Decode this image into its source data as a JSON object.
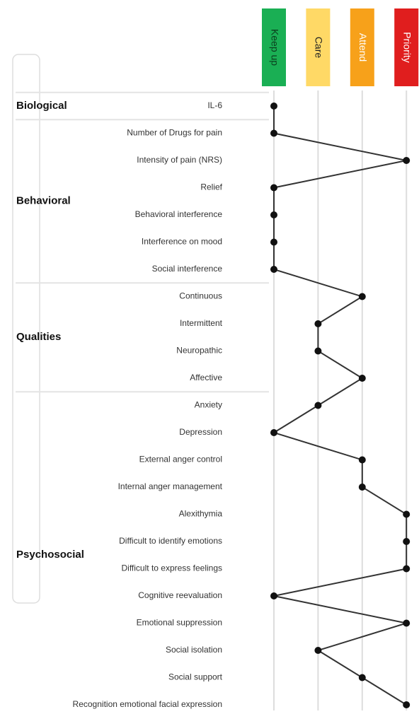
{
  "chart_data": {
    "type": "profile",
    "levels": [
      {
        "name": "Keep up",
        "color": "#1aaf54",
        "text_color": "#0b3d1d"
      },
      {
        "name": "Care",
        "color": "#ffd966",
        "text_color": "#222222"
      },
      {
        "name": "Attend",
        "color": "#f7a11a",
        "text_color": "#ffffff"
      },
      {
        "name": "Priority",
        "color": "#e01e1e",
        "text_color": "#ffffff"
      }
    ],
    "groups": [
      {
        "name": "Biological",
        "items": [
          {
            "label": "IL-6",
            "level": "Keep up"
          }
        ]
      },
      {
        "name": "Behavioral",
        "items": [
          {
            "label": "Number of Drugs for pain",
            "level": "Keep up"
          },
          {
            "label": "Intensity of pain (NRS)",
            "level": "Priority"
          },
          {
            "label": "Relief",
            "level": "Keep up"
          },
          {
            "label": "Behavioral interference",
            "level": "Keep up"
          },
          {
            "label": "Interference on mood",
            "level": "Keep up"
          },
          {
            "label": "Social interference",
            "level": "Keep up"
          }
        ]
      },
      {
        "name": "Qualities",
        "items": [
          {
            "label": "Continuous",
            "level": "Attend"
          },
          {
            "label": "Intermittent",
            "level": "Care"
          },
          {
            "label": "Neuropathic",
            "level": "Care"
          },
          {
            "label": "Affective",
            "level": "Attend"
          }
        ]
      },
      {
        "name": "Psychosocial",
        "items": [
          {
            "label": "Anxiety",
            "level": "Care"
          },
          {
            "label": "Depression",
            "level": "Keep up"
          },
          {
            "label": "External anger control",
            "level": "Attend"
          },
          {
            "label": "Internal anger management",
            "level": "Attend"
          },
          {
            "label": "Alexithymia",
            "level": "Priority"
          },
          {
            "label": "Difficult to identify emotions",
            "level": "Priority"
          },
          {
            "label": "Difficult to express feelings",
            "level": "Priority"
          },
          {
            "label": "Cognitive reevaluation",
            "level": "Keep up"
          },
          {
            "label": "Emotional suppression",
            "level": "Priority"
          },
          {
            "label": "Social isolation",
            "level": "Care"
          },
          {
            "label": "Social support",
            "level": "Attend"
          },
          {
            "label": "Recognition emotional facial expression",
            "level": "Priority"
          }
        ]
      }
    ]
  }
}
